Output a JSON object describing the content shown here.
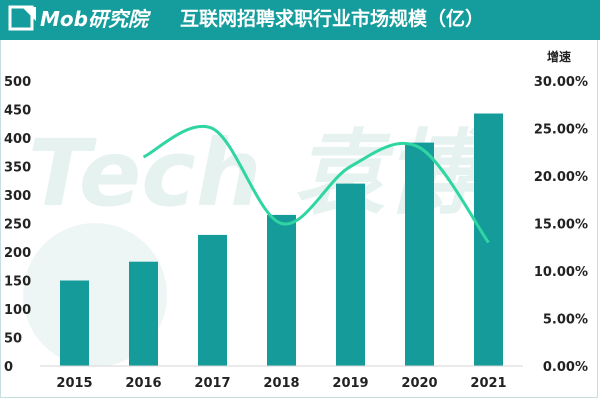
{
  "header": {
    "brand": "Mob研究院",
    "title": "互联网招聘求职行业市场规模（亿）"
  },
  "watermark": {
    "text": "Tech 袁博"
  },
  "colors": {
    "header_bg": "#159c9c",
    "bar": "#169b9b",
    "line": "#2fd6a2",
    "text": "#222222"
  },
  "chart_data": {
    "type": "bar",
    "title": "互联网招聘求职行业市场规模（亿）",
    "categories": [
      "2015",
      "2016",
      "2017",
      "2018",
      "2019",
      "2020",
      "2021"
    ],
    "series": [
      {
        "type": "bar",
        "axis": "left",
        "values": [
          150,
          183,
          230,
          265,
          320,
          392,
          443
        ]
      },
      {
        "name": "增速",
        "type": "line",
        "axis": "right",
        "smooth": true,
        "x": [
          "2016",
          "2017",
          "2018",
          "2019",
          "2020",
          "2021"
        ],
        "values": [
          22.0,
          25.0,
          15.0,
          21.0,
          23.0,
          13.0
        ]
      }
    ],
    "ylim": [
      0,
      500
    ],
    "yticks": [
      "500",
      "450",
      "400",
      "350",
      "300",
      "250",
      "200",
      "150",
      "100",
      "50",
      "0"
    ],
    "ylabel": "",
    "y2label": "增速",
    "y2lim": [
      0,
      30
    ],
    "y2ticks": [
      "30.00%",
      "25.00%",
      "20.00%",
      "15.00%",
      "10.00%",
      "5.00%",
      "0.00%"
    ],
    "xlabel": "",
    "grid": false,
    "legend": "none"
  }
}
